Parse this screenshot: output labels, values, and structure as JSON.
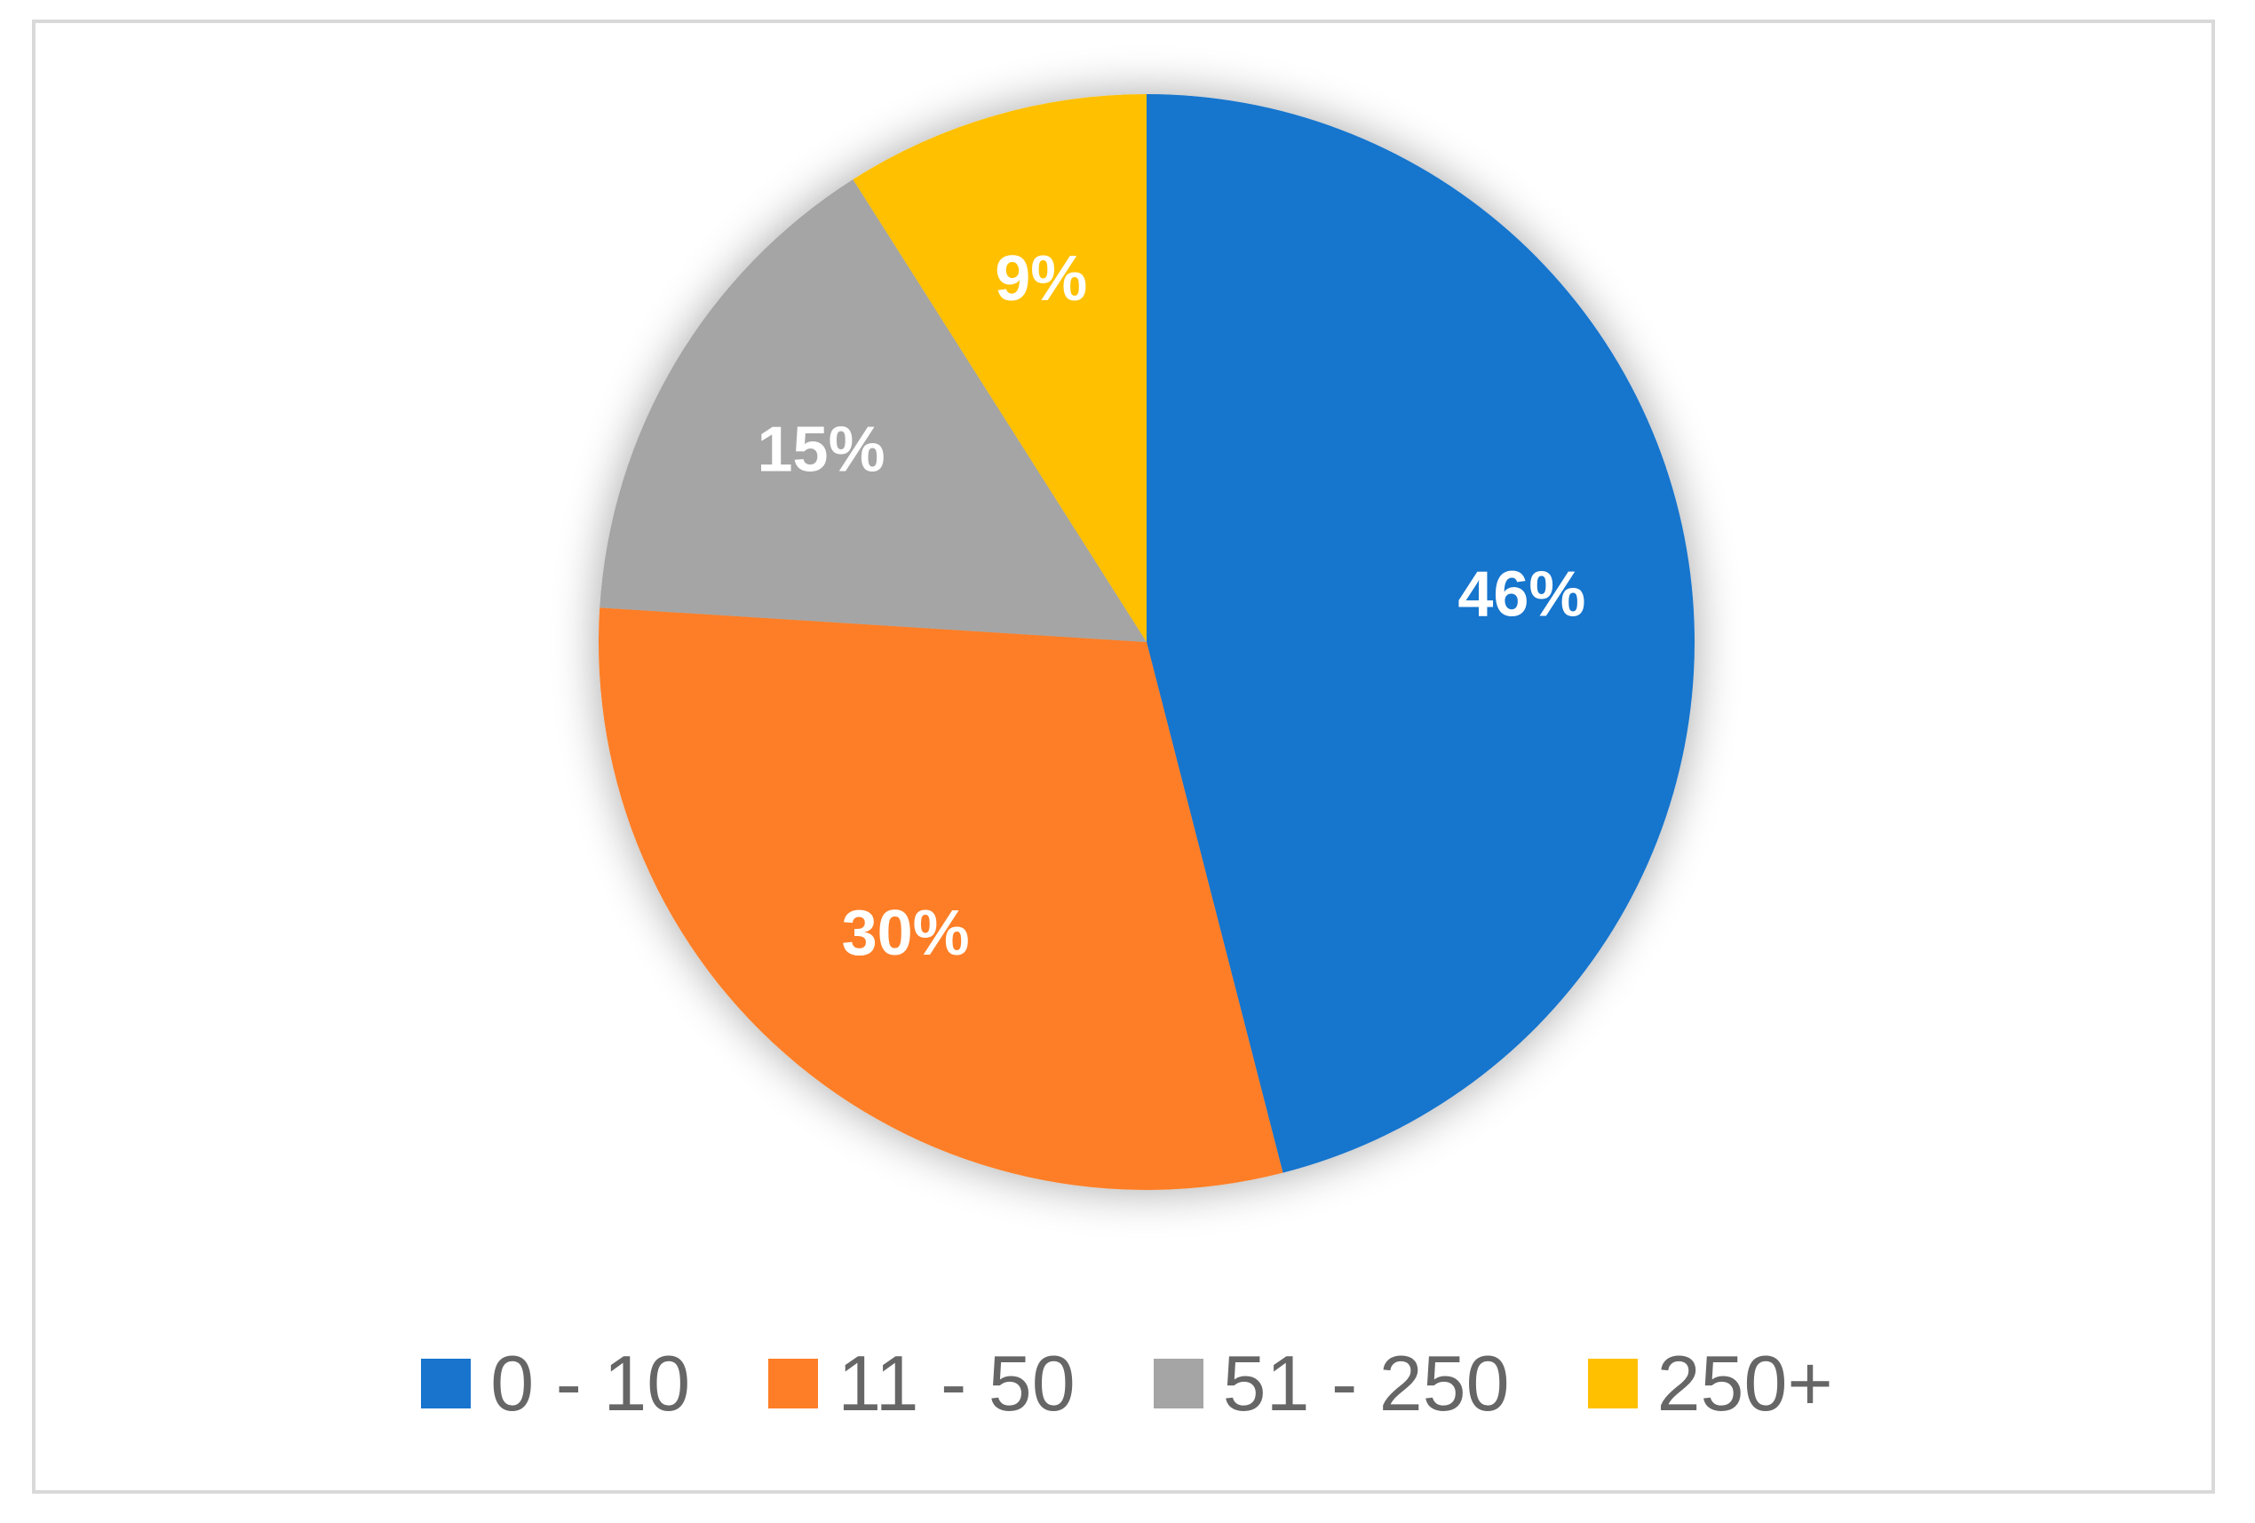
{
  "chart_data": {
    "type": "pie",
    "slices": [
      {
        "name": "0 - 10",
        "value": 46,
        "label": "46%",
        "color": "#1874cd"
      },
      {
        "name": "11 - 50",
        "value": 30,
        "label": "30%",
        "color": "#fd7e26"
      },
      {
        "name": "51 - 250",
        "value": 15,
        "label": "15%",
        "color": "#a5a5a5"
      },
      {
        "name": "250+",
        "value": 9,
        "label": "9%",
        "color": "#ffc000"
      }
    ],
    "start": "12 o'clock",
    "direction": "clockwise",
    "legend_position": "bottom",
    "data_labels": "percent, inside slices, white bold"
  }
}
